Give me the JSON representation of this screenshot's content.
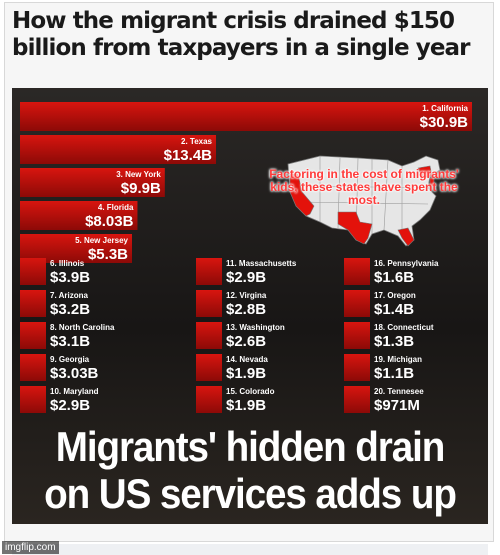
{
  "headline": "How the migrant crisis drained $150 billion from taxpayers in a single year",
  "map_caption": "Factoring in the cost of migrants' kids, these states have spent the most.",
  "bottom_headline": "Migrants' hidden drain on US services adds up",
  "watermark": "imgflip.com",
  "colors": {
    "bar": "#d8150f",
    "bar_dark": "#8c0a07",
    "label": "#ffffff",
    "background": "#1c1a19",
    "map_red": "#e3120b"
  },
  "chart_data": {
    "type": "bar",
    "unit": "billion USD",
    "title": "How the migrant crisis drained $150 billion from taxpayers in a single year",
    "annotation": "Factoring in the cost of migrants' kids, these states have spent the most.",
    "top_states": [
      {
        "rank_label": "1. California",
        "value": 30.9,
        "value_label": "$30.9B"
      },
      {
        "rank_label": "2. Texas",
        "value": 13.4,
        "value_label": "$13.4B"
      },
      {
        "rank_label": "3. New York",
        "value": 9.9,
        "value_label": "$9.9B"
      },
      {
        "rank_label": "4. Florida",
        "value": 8.03,
        "value_label": "$8.03B"
      },
      {
        "rank_label": "5. New Jersey",
        "value": 5.3,
        "value_label": "$5.3B"
      }
    ],
    "other_states": [
      [
        {
          "rank_label": "6. Illinois",
          "value_label": "$3.9B"
        },
        {
          "rank_label": "7. Arizona",
          "value_label": "$3.2B"
        },
        {
          "rank_label": "8. North Carolina",
          "value_label": "$3.1B"
        },
        {
          "rank_label": "9. Georgia",
          "value_label": "$3.03B"
        },
        {
          "rank_label": "10. Maryland",
          "value_label": "$2.9B"
        }
      ],
      [
        {
          "rank_label": "11. Massachusetts",
          "value_label": "$2.9B"
        },
        {
          "rank_label": "12. Virgina",
          "value_label": "$2.8B"
        },
        {
          "rank_label": "13. Washington",
          "value_label": "$2.6B"
        },
        {
          "rank_label": "14. Nevada",
          "value_label": "$1.9B"
        },
        {
          "rank_label": "15. Colorado",
          "value_label": "$1.9B"
        }
      ],
      [
        {
          "rank_label": "16. Pennsylvania",
          "value_label": "$1.6B"
        },
        {
          "rank_label": "17. Oregon",
          "value_label": "$1.4B"
        },
        {
          "rank_label": "18. Connecticut",
          "value_label": "$1.3B"
        },
        {
          "rank_label": "19. Michigan",
          "value_label": "$1.1B"
        },
        {
          "rank_label": "20. Tennesee",
          "value_label": "$971M"
        }
      ]
    ]
  }
}
